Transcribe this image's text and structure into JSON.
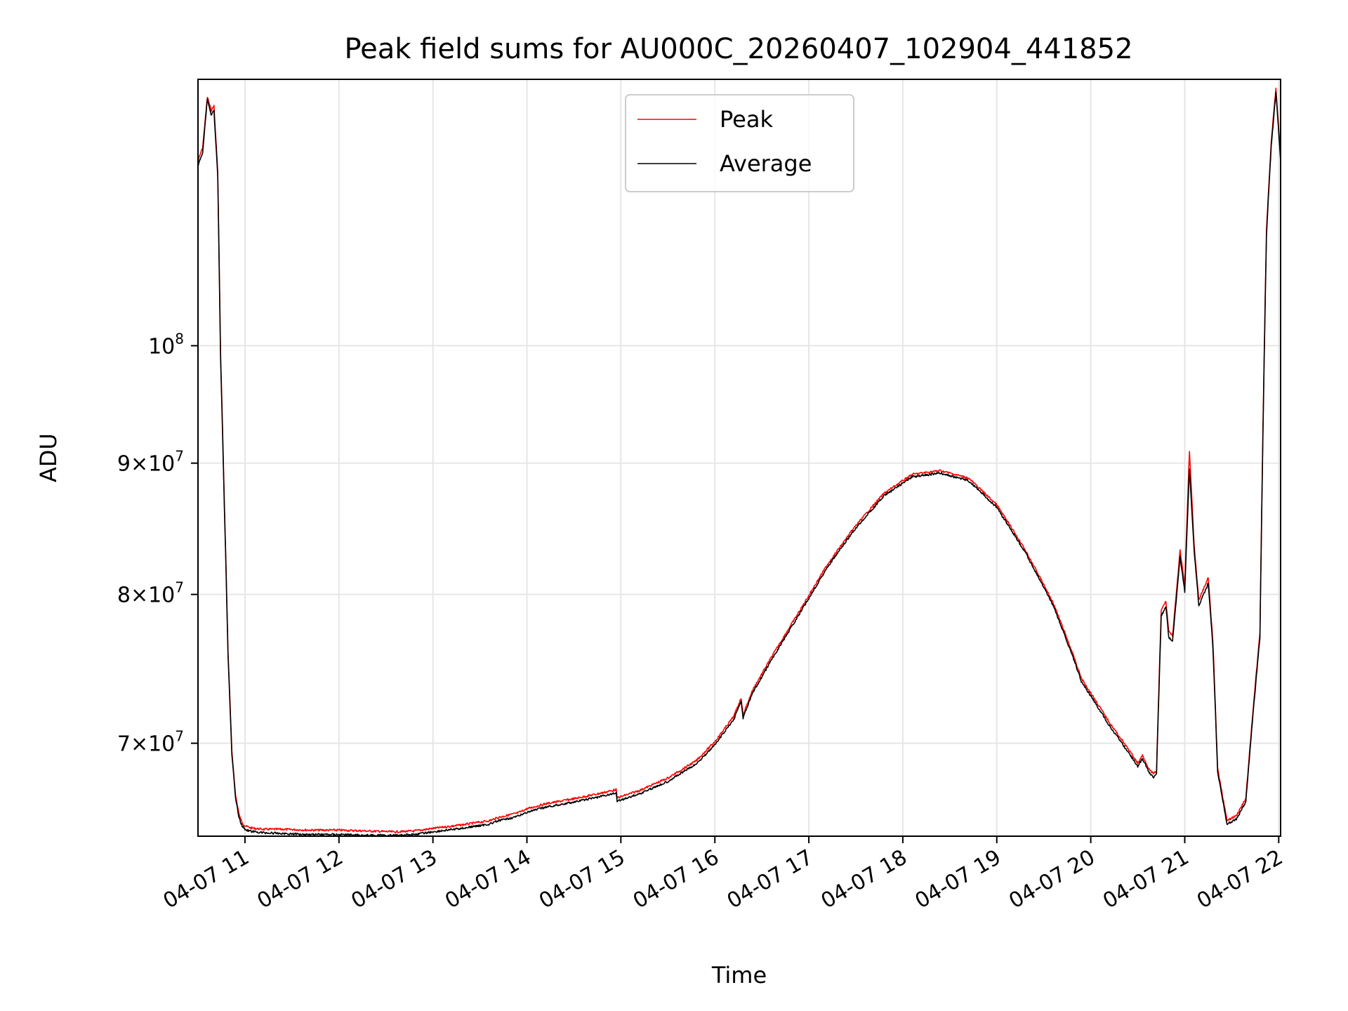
{
  "chart_data": {
    "type": "line",
    "title": "Peak field sums for AU000C_20260407_102904_441852",
    "xlabel": "Time",
    "ylabel": "ADU",
    "yscale": "log",
    "ylim": [
      64400000,
      127000000
    ],
    "xlim": [
      10.5,
      22.02
    ],
    "grid": true,
    "legend_position": "top-center",
    "x_ticks": [
      {
        "value": 11,
        "label": "04-07 11"
      },
      {
        "value": 12,
        "label": "04-07 12"
      },
      {
        "value": 13,
        "label": "04-07 13"
      },
      {
        "value": 14,
        "label": "04-07 14"
      },
      {
        "value": 15,
        "label": "04-07 15"
      },
      {
        "value": 16,
        "label": "04-07 16"
      },
      {
        "value": 17,
        "label": "04-07 17"
      },
      {
        "value": 18,
        "label": "04-07 18"
      },
      {
        "value": 19,
        "label": "04-07 19"
      },
      {
        "value": 20,
        "label": "04-07 20"
      },
      {
        "value": 21,
        "label": "04-07 21"
      },
      {
        "value": 22,
        "label": "04-07 22"
      }
    ],
    "y_ticks": [
      {
        "value": 70000000,
        "mantissa": "7",
        "exponent": "7"
      },
      {
        "value": 80000000,
        "mantissa": "8",
        "exponent": "7"
      },
      {
        "value": 90000000,
        "mantissa": "9",
        "exponent": "7"
      },
      {
        "value": 100000000,
        "mantissa": "",
        "exponent": "8"
      }
    ],
    "series": [
      {
        "name": "Peak",
        "color": "#ff0000",
        "x": [
          10.5,
          10.55,
          10.6,
          10.64,
          10.67,
          10.71,
          10.74,
          10.78,
          10.82,
          10.86,
          10.9,
          10.94,
          10.97,
          11.0,
          11.05,
          11.1,
          11.2,
          11.4,
          11.7,
          12.0,
          12.3,
          12.6,
          12.8,
          13.0,
          13.3,
          13.6,
          13.7,
          13.9,
          14.0,
          14.2,
          14.5,
          14.8,
          14.95,
          14.96,
          15.2,
          15.5,
          15.8,
          16.0,
          16.2,
          16.28,
          16.3,
          16.4,
          16.6,
          16.9,
          17.2,
          17.5,
          17.8,
          18.1,
          18.4,
          18.7,
          19.0,
          19.3,
          19.6,
          19.8,
          19.9,
          20.2,
          20.45,
          20.5,
          20.55,
          20.6,
          20.63,
          20.67,
          20.7,
          20.75,
          20.8,
          20.83,
          20.87,
          20.91,
          20.95,
          21.0,
          21.05,
          21.1,
          21.15,
          21.25,
          21.3,
          21.35,
          21.45,
          21.55,
          21.65,
          21.8,
          21.87,
          21.92,
          21.97,
          22.02
        ],
        "values": [
          118000000,
          119500000,
          125000000,
          123500000,
          124000000,
          117000000,
          99500000,
          87000000,
          76000000,
          69500000,
          66800000,
          65600000,
          65200000,
          65000000,
          64900000,
          64850000,
          64800000,
          64800000,
          64750000,
          64750000,
          64700000,
          64650000,
          64700000,
          64850000,
          65050000,
          65300000,
          65500000,
          65750000,
          66000000,
          66300000,
          66600000,
          66950000,
          67150000,
          66650000,
          67100000,
          67850000,
          68900000,
          70100000,
          71700000,
          72900000,
          71800000,
          73400000,
          75600000,
          78800000,
          82200000,
          85100000,
          87600000,
          89100000,
          89400000,
          88800000,
          86700000,
          83300000,
          79400000,
          76000000,
          74200000,
          71300000,
          69200000,
          68750000,
          69250000,
          68650000,
          68300000,
          68100000,
          68300000,
          78900000,
          79500000,
          77400000,
          77100000,
          80000000,
          83200000,
          80600000,
          91000000,
          83600000,
          79600000,
          81200000,
          76600000,
          68400000,
          65300000,
          65600000,
          66600000,
          77300000,
          111000000,
          120000000,
          126000000,
          118500000
        ]
      },
      {
        "name": "Average",
        "color": "#000000",
        "x": [
          10.5,
          10.55,
          10.6,
          10.64,
          10.67,
          10.71,
          10.74,
          10.78,
          10.82,
          10.86,
          10.9,
          10.94,
          10.97,
          11.0,
          11.05,
          11.1,
          11.2,
          11.4,
          11.7,
          12.0,
          12.3,
          12.6,
          12.8,
          13.0,
          13.3,
          13.6,
          13.7,
          13.9,
          14.0,
          14.2,
          14.5,
          14.8,
          14.95,
          14.96,
          15.2,
          15.5,
          15.8,
          16.0,
          16.2,
          16.28,
          16.3,
          16.4,
          16.6,
          16.9,
          17.2,
          17.5,
          17.8,
          18.1,
          18.4,
          18.7,
          19.0,
          19.3,
          19.6,
          19.8,
          19.9,
          20.2,
          20.45,
          20.5,
          20.55,
          20.6,
          20.63,
          20.67,
          20.7,
          20.75,
          20.8,
          20.83,
          20.87,
          20.91,
          20.95,
          21.0,
          21.05,
          21.1,
          21.15,
          21.25,
          21.3,
          21.35,
          21.45,
          21.55,
          21.65,
          21.8,
          21.87,
          21.92,
          21.97,
          22.02
        ],
        "values": [
          117500000,
          119000000,
          124800000,
          123000000,
          123500000,
          116500000,
          99000000,
          86700000,
          75800000,
          69300000,
          66600000,
          65400000,
          65000000,
          64800000,
          64700000,
          64650000,
          64600000,
          64550000,
          64500000,
          64500000,
          64450000,
          64450000,
          64500000,
          64650000,
          64850000,
          65100000,
          65300000,
          65550000,
          65800000,
          66100000,
          66400000,
          66750000,
          66950000,
          66450000,
          66900000,
          67650000,
          68700000,
          69900000,
          71500000,
          72700000,
          71600000,
          73200000,
          75400000,
          78600000,
          82000000,
          84900000,
          87400000,
          88900000,
          89200000,
          88600000,
          86500000,
          83100000,
          79200000,
          75800000,
          74000000,
          71100000,
          69000000,
          68550000,
          69050000,
          68450000,
          68100000,
          67900000,
          68100000,
          78500000,
          79100000,
          77000000,
          76700000,
          79600000,
          82800000,
          80200000,
          89500000,
          83200000,
          79200000,
          80800000,
          76200000,
          68200000,
          65100000,
          65400000,
          66400000,
          77000000,
          110500000,
          119500000,
          125500000,
          118000000
        ]
      }
    ]
  }
}
